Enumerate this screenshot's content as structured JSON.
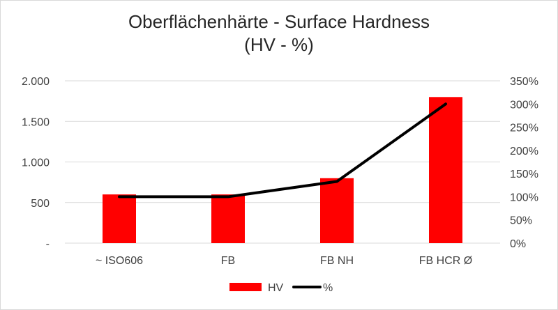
{
  "chart_data": {
    "type": "bar",
    "title": "Oberflächenhärte - Surface Hardness",
    "subtitle": "(HV - %)",
    "categories": [
      "~ ISO606",
      "FB",
      "FB NH",
      "FB HCR Ø"
    ],
    "series": [
      {
        "name": "HV",
        "kind": "bar",
        "axis": "left",
        "color": "#ff0000",
        "values": [
          600,
          600,
          800,
          1800
        ]
      },
      {
        "name": "%",
        "kind": "line",
        "axis": "right",
        "color": "#000000",
        "values": [
          100,
          100,
          133,
          300
        ]
      }
    ],
    "y_left": {
      "ylim": [
        0,
        2000
      ],
      "ticks": [
        "-",
        "500",
        "1.000",
        "1.500",
        "2.000"
      ]
    },
    "y_right": {
      "ylim": [
        0,
        350
      ],
      "ticks": [
        "0%",
        "50%",
        "100%",
        "150%",
        "200%",
        "250%",
        "300%",
        "350%"
      ]
    },
    "grid": true,
    "legend": "bottom"
  }
}
